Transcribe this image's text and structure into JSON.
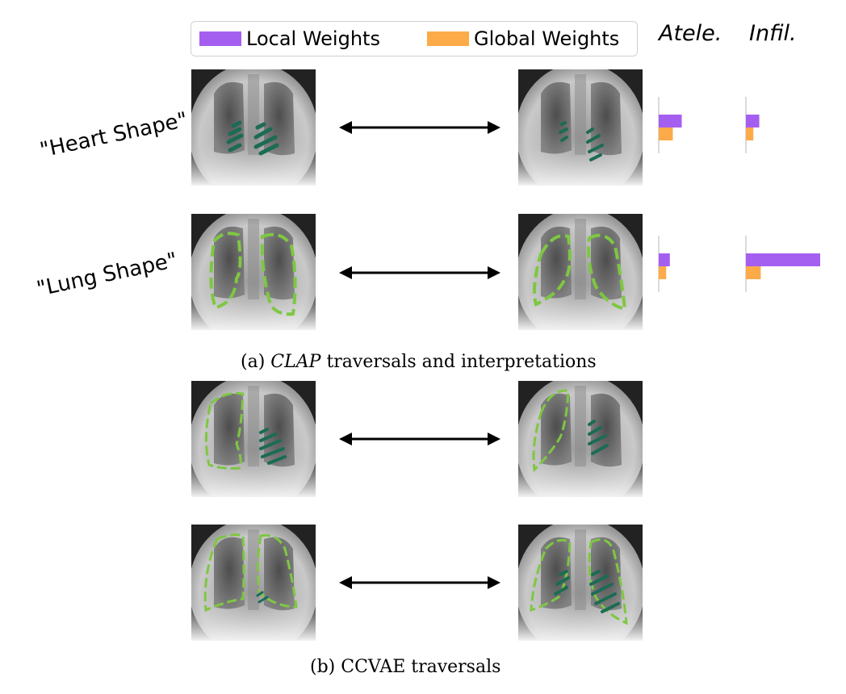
{
  "legend": {
    "items": [
      {
        "label": "Local Weights",
        "color": "#a55ff0"
      },
      {
        "label": "Global Weights",
        "color": "#fdaa48"
      }
    ]
  },
  "column_titles": [
    "Atele.",
    "Infil."
  ],
  "rows": [
    {
      "label": "\"Heart Shape\""
    },
    {
      "label": "\"Lung Shape\""
    }
  ],
  "chart_data": {
    "type": "bar",
    "orientation": "horizontal",
    "panels": [
      {
        "row": "\"Heart Shape\"",
        "column": "Atele.",
        "series": [
          {
            "name": "Local Weights",
            "value": 0.31
          },
          {
            "name": "Global Weights",
            "value": 0.19
          }
        ]
      },
      {
        "row": "\"Heart Shape\"",
        "column": "Infil.",
        "series": [
          {
            "name": "Local Weights",
            "value": 0.18
          },
          {
            "name": "Global Weights",
            "value": 0.1
          }
        ]
      },
      {
        "row": "\"Lung Shape\"",
        "column": "Atele.",
        "series": [
          {
            "name": "Local Weights",
            "value": 0.15
          },
          {
            "name": "Global Weights",
            "value": 0.1
          }
        ]
      },
      {
        "row": "\"Lung Shape\"",
        "column": "Infil.",
        "series": [
          {
            "name": "Local Weights",
            "value": 1.0
          },
          {
            "name": "Global Weights",
            "value": 0.2
          }
        ]
      }
    ],
    "xlim": [
      0,
      1
    ]
  },
  "captions": {
    "a_prefix": "(a)",
    "a_italic": "CLAP",
    "a_suffix": "traversals and interpretations",
    "b": "(b) CCVAE traversals"
  },
  "colors": {
    "hatch": "#1c6b55",
    "lung_outline": "#7ec742",
    "arrow": "#000000"
  }
}
